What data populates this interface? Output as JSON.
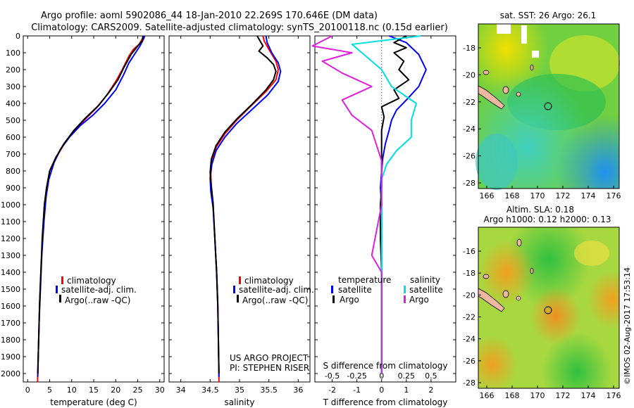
{
  "header": {
    "line1": "Argo profile: aoml 5902086_44 18-Jan-2010 22.269S 170.646E (DM data)",
    "line2": "Climatology: CARS2009. Satellite-adjusted climatology: synTS_20100118.nc (0.15d earlier)"
  },
  "colors": {
    "climatology": "#ff0000",
    "satellite": "#0000ff",
    "argo": "#000000",
    "s_satellite": "#00e0e0",
    "s_argo": "#e020e0",
    "land": "#f0b8a0"
  },
  "depth_axis": {
    "ylim": [
      0,
      2050
    ],
    "ticks": [
      0,
      100,
      200,
      300,
      400,
      500,
      600,
      700,
      800,
      900,
      1000,
      1100,
      1200,
      1300,
      1400,
      1500,
      1600,
      1700,
      1800,
      1900,
      2000
    ],
    "tick_labels": [
      "0",
      "100",
      "200",
      "300",
      "400",
      "500",
      "600",
      "700",
      "800",
      "900",
      "1000",
      "1100",
      "1200",
      "1300",
      "1400",
      "1500",
      "1600",
      "1700",
      "1800",
      "1900",
      "2000"
    ]
  },
  "chart_data": [
    {
      "type": "line",
      "id": "temperature",
      "xlabel": "temperature (deg C)",
      "xlim": [
        -1,
        31
      ],
      "xticks": [
        0,
        5,
        10,
        15,
        20,
        25,
        30
      ],
      "xtick_labels": [
        "0",
        "5",
        "10",
        "15",
        "20",
        "25",
        "30"
      ],
      "legend": [
        "climatology",
        "satellite-adj. clim.",
        "Argo(..raw -QC)"
      ],
      "series": [
        {
          "name": "climatology",
          "color": "#ff0000",
          "points": [
            [
              26.3,
              0
            ],
            [
              26.0,
              20
            ],
            [
              25.3,
              50
            ],
            [
              24.0,
              80
            ],
            [
              23.0,
              120
            ],
            [
              21.5,
              200
            ],
            [
              20.0,
              270
            ],
            [
              18.0,
              350
            ],
            [
              15.5,
              430
            ],
            [
              12.8,
              500
            ],
            [
              10.5,
              560
            ],
            [
              8.3,
              640
            ],
            [
              6.5,
              720
            ],
            [
              5.0,
              800
            ],
            [
              4.3,
              900
            ],
            [
              3.8,
              1000
            ],
            [
              3.4,
              1200
            ],
            [
              3.0,
              1400
            ],
            [
              2.7,
              1600
            ],
            [
              2.5,
              1800
            ],
            [
              2.3,
              2000
            ],
            [
              2.25,
              2050
            ]
          ]
        },
        {
          "name": "satellite-adj. clim.",
          "color": "#0000ff",
          "points": [
            [
              26.6,
              0
            ],
            [
              26.3,
              20
            ],
            [
              25.5,
              60
            ],
            [
              24.5,
              100
            ],
            [
              23.0,
              160
            ],
            [
              21.8,
              230
            ],
            [
              20.0,
              320
            ],
            [
              17.5,
              400
            ],
            [
              14.8,
              470
            ],
            [
              12.0,
              530
            ],
            [
              9.5,
              600
            ],
            [
              7.5,
              670
            ],
            [
              6.0,
              750
            ],
            [
              4.8,
              850
            ],
            [
              4.2,
              950
            ],
            [
              3.7,
              1100
            ],
            [
              3.2,
              1300
            ],
            [
              2.9,
              1500
            ],
            [
              2.6,
              1700
            ],
            [
              2.4,
              1900
            ],
            [
              2.3,
              2020
            ]
          ]
        },
        {
          "name": "Argo(..raw -QC)",
          "color": "#000000",
          "points": [
            [
              26.2,
              0
            ],
            [
              26.0,
              30
            ],
            [
              25.0,
              60
            ],
            [
              23.5,
              110
            ],
            [
              22.0,
              180
            ],
            [
              20.5,
              260
            ],
            [
              18.6,
              330
            ],
            [
              16.2,
              410
            ],
            [
              13.0,
              490
            ],
            [
              10.5,
              560
            ],
            [
              8.2,
              640
            ],
            [
              6.4,
              720
            ],
            [
              5.0,
              800
            ],
            [
              4.3,
              900
            ],
            [
              3.8,
              1000
            ],
            [
              3.3,
              1200
            ],
            [
              3.0,
              1400
            ],
            [
              2.7,
              1600
            ],
            [
              2.5,
              1800
            ],
            [
              2.3,
              2000
            ]
          ]
        }
      ]
    },
    {
      "type": "line",
      "id": "salinity",
      "xlabel": "salinity",
      "xlim": [
        33.8,
        36.2
      ],
      "xticks": [
        34,
        34.5,
        35,
        35.5,
        36
      ],
      "xtick_labels": [
        "34",
        "34.5",
        "35",
        "35.5",
        "36"
      ],
      "legend": [
        "climatology",
        "satellite-adj. clim.",
        "Argo(..raw -QC)"
      ],
      "annotation": [
        "US ARGO PROJECT",
        "PI: STEPHEN RISER"
      ],
      "series": [
        {
          "name": "climatology",
          "color": "#ff0000",
          "points": [
            [
              35.4,
              0
            ],
            [
              35.42,
              30
            ],
            [
              35.5,
              80
            ],
            [
              35.62,
              150
            ],
            [
              35.66,
              200
            ],
            [
              35.62,
              260
            ],
            [
              35.45,
              330
            ],
            [
              35.18,
              420
            ],
            [
              34.95,
              500
            ],
            [
              34.75,
              580
            ],
            [
              34.6,
              660
            ],
            [
              34.53,
              740
            ],
            [
              34.51,
              820
            ],
            [
              34.52,
              900
            ],
            [
              34.55,
              1000
            ],
            [
              34.58,
              1200
            ],
            [
              34.61,
              1400
            ],
            [
              34.63,
              1600
            ],
            [
              34.64,
              1800
            ],
            [
              34.65,
              2000
            ],
            [
              34.65,
              2050
            ]
          ]
        },
        {
          "name": "satellite-adj. clim.",
          "color": "#0000ff",
          "points": [
            [
              35.45,
              0
            ],
            [
              35.47,
              40
            ],
            [
              35.55,
              100
            ],
            [
              35.66,
              160
            ],
            [
              35.7,
              210
            ],
            [
              35.66,
              270
            ],
            [
              35.48,
              350
            ],
            [
              35.2,
              440
            ],
            [
              34.95,
              520
            ],
            [
              34.75,
              600
            ],
            [
              34.6,
              680
            ],
            [
              34.53,
              760
            ],
            [
              34.5,
              840
            ],
            [
              34.51,
              920
            ],
            [
              34.55,
              1020
            ],
            [
              34.58,
              1200
            ],
            [
              34.61,
              1400
            ],
            [
              34.63,
              1600
            ],
            [
              34.64,
              1800
            ],
            [
              34.65,
              2020
            ]
          ]
        },
        {
          "name": "Argo(..raw -QC)",
          "color": "#000000",
          "points": [
            [
              35.3,
              0
            ],
            [
              35.35,
              30
            ],
            [
              35.4,
              60
            ],
            [
              35.33,
              90
            ],
            [
              35.47,
              130
            ],
            [
              35.58,
              170
            ],
            [
              35.62,
              210
            ],
            [
              35.58,
              260
            ],
            [
              35.45,
              320
            ],
            [
              35.2,
              410
            ],
            [
              34.96,
              490
            ],
            [
              34.75,
              570
            ],
            [
              34.6,
              650
            ],
            [
              34.52,
              730
            ],
            [
              34.5,
              810
            ],
            [
              34.52,
              890
            ],
            [
              34.55,
              990
            ],
            [
              34.58,
              1200
            ],
            [
              34.61,
              1400
            ],
            [
              34.63,
              1600
            ],
            [
              34.64,
              1800
            ],
            [
              34.65,
              2000
            ]
          ]
        }
      ]
    },
    {
      "type": "line",
      "id": "difference",
      "xlabel": "T difference from climatology",
      "xlabel_top": "S difference from climatology",
      "xlim": [
        -2.7,
        3.0
      ],
      "xticks": [
        -2,
        -1,
        0,
        1,
        2
      ],
      "xtick_labels": [
        "-2",
        "-1",
        "0",
        "1",
        "2"
      ],
      "s_ticks": [
        -0.5,
        -0.25,
        0,
        0.25,
        0.5
      ],
      "s_tick_labels": [
        "-0.5",
        "-0.25",
        "0",
        "0.25",
        "0.5"
      ],
      "legend_headers": [
        "temperature",
        "salinity"
      ],
      "legend": [
        "satellite",
        "Argo",
        "satellite",
        "Argo"
      ],
      "series": [
        {
          "name": "T satellite",
          "color": "#0000ff",
          "points": [
            [
              0.3,
              0
            ],
            [
              1.0,
              40
            ],
            [
              1.5,
              110
            ],
            [
              1.8,
              200
            ],
            [
              1.5,
              300
            ],
            [
              1.0,
              380
            ],
            [
              0.6,
              440
            ],
            [
              0.4,
              500
            ],
            [
              0.3,
              560
            ],
            [
              0.15,
              640
            ],
            [
              0.05,
              720
            ],
            [
              0.0,
              800
            ],
            [
              -0.05,
              900
            ],
            [
              0.0,
              1000
            ],
            [
              0.0,
              1200
            ],
            [
              0.0,
              1500
            ],
            [
              0.0,
              1800
            ],
            [
              0.0,
              2000
            ]
          ]
        },
        {
          "name": "T Argo",
          "color": "#000000",
          "points": [
            [
              1.0,
              0
            ],
            [
              0.5,
              40
            ],
            [
              1.0,
              70
            ],
            [
              0.5,
              100
            ],
            [
              0.9,
              150
            ],
            [
              0.7,
              200
            ],
            [
              1.1,
              260
            ],
            [
              0.5,
              320
            ],
            [
              0.7,
              370
            ],
            [
              0.0,
              420
            ],
            [
              0.1,
              480
            ],
            [
              0.0,
              560
            ],
            [
              0.0,
              700
            ],
            [
              0.0,
              900
            ],
            [
              -0.05,
              1000
            ],
            [
              -0.05,
              1200
            ],
            [
              0.0,
              1400
            ],
            [
              0.0,
              1700
            ],
            [
              0.0,
              2000
            ]
          ]
        },
        {
          "name": "S satellite",
          "color": "#00e0e0",
          "points": [
            [
              0.4,
              0
            ],
            [
              -0.3,
              50
            ],
            [
              -0.2,
              100
            ],
            [
              0.0,
              200
            ],
            [
              0.1,
              300
            ],
            [
              0.35,
              400
            ],
            [
              0.3,
              500
            ],
            [
              0.3,
              600
            ],
            [
              0.15,
              680
            ],
            [
              0.05,
              760
            ],
            [
              0.0,
              850
            ],
            [
              0.0,
              1000
            ],
            [
              0.0,
              1200
            ],
            [
              0.0,
              1500
            ],
            [
              0.0,
              1800
            ],
            [
              0.0,
              2000
            ]
          ]
        },
        {
          "name": "S Argo",
          "color": "#e020e0",
          "points": [
            [
              -0.5,
              0
            ],
            [
              -0.7,
              60
            ],
            [
              -0.3,
              100
            ],
            [
              -0.6,
              150
            ],
            [
              -0.4,
              220
            ],
            [
              -0.1,
              300
            ],
            [
              -0.4,
              380
            ],
            [
              -0.3,
              470
            ],
            [
              -0.1,
              560
            ],
            [
              -0.05,
              650
            ],
            [
              0.0,
              740
            ],
            [
              0.0,
              850
            ],
            [
              0.0,
              1000
            ],
            [
              -0.1,
              1300
            ],
            [
              0.0,
              1400
            ],
            [
              0.0,
              1600
            ],
            [
              0.0,
              1800
            ],
            [
              0.0,
              2000
            ]
          ]
        }
      ]
    }
  ],
  "map_top": {
    "title": "sat. SST: 26  Argo: 26.1",
    "xticks": [
      "166",
      "168",
      "170",
      "172",
      "174",
      "176"
    ],
    "yticks": [
      "-18",
      "-20",
      "-22",
      "-24",
      "-26",
      "-28"
    ]
  },
  "map_bottom": {
    "title1": "Altim. SLA: 0.18",
    "title2": "Argo h1000: 0.12 h2000: 0.13",
    "xticks": [
      "166",
      "168",
      "170",
      "172",
      "174",
      "176"
    ],
    "yticks": [
      "-16",
      "-18",
      "-20",
      "-22",
      "-24",
      "-26",
      "-28"
    ]
  },
  "footer": {
    "stamp": "©IMOS 02-Aug-2017 17:53:14"
  }
}
